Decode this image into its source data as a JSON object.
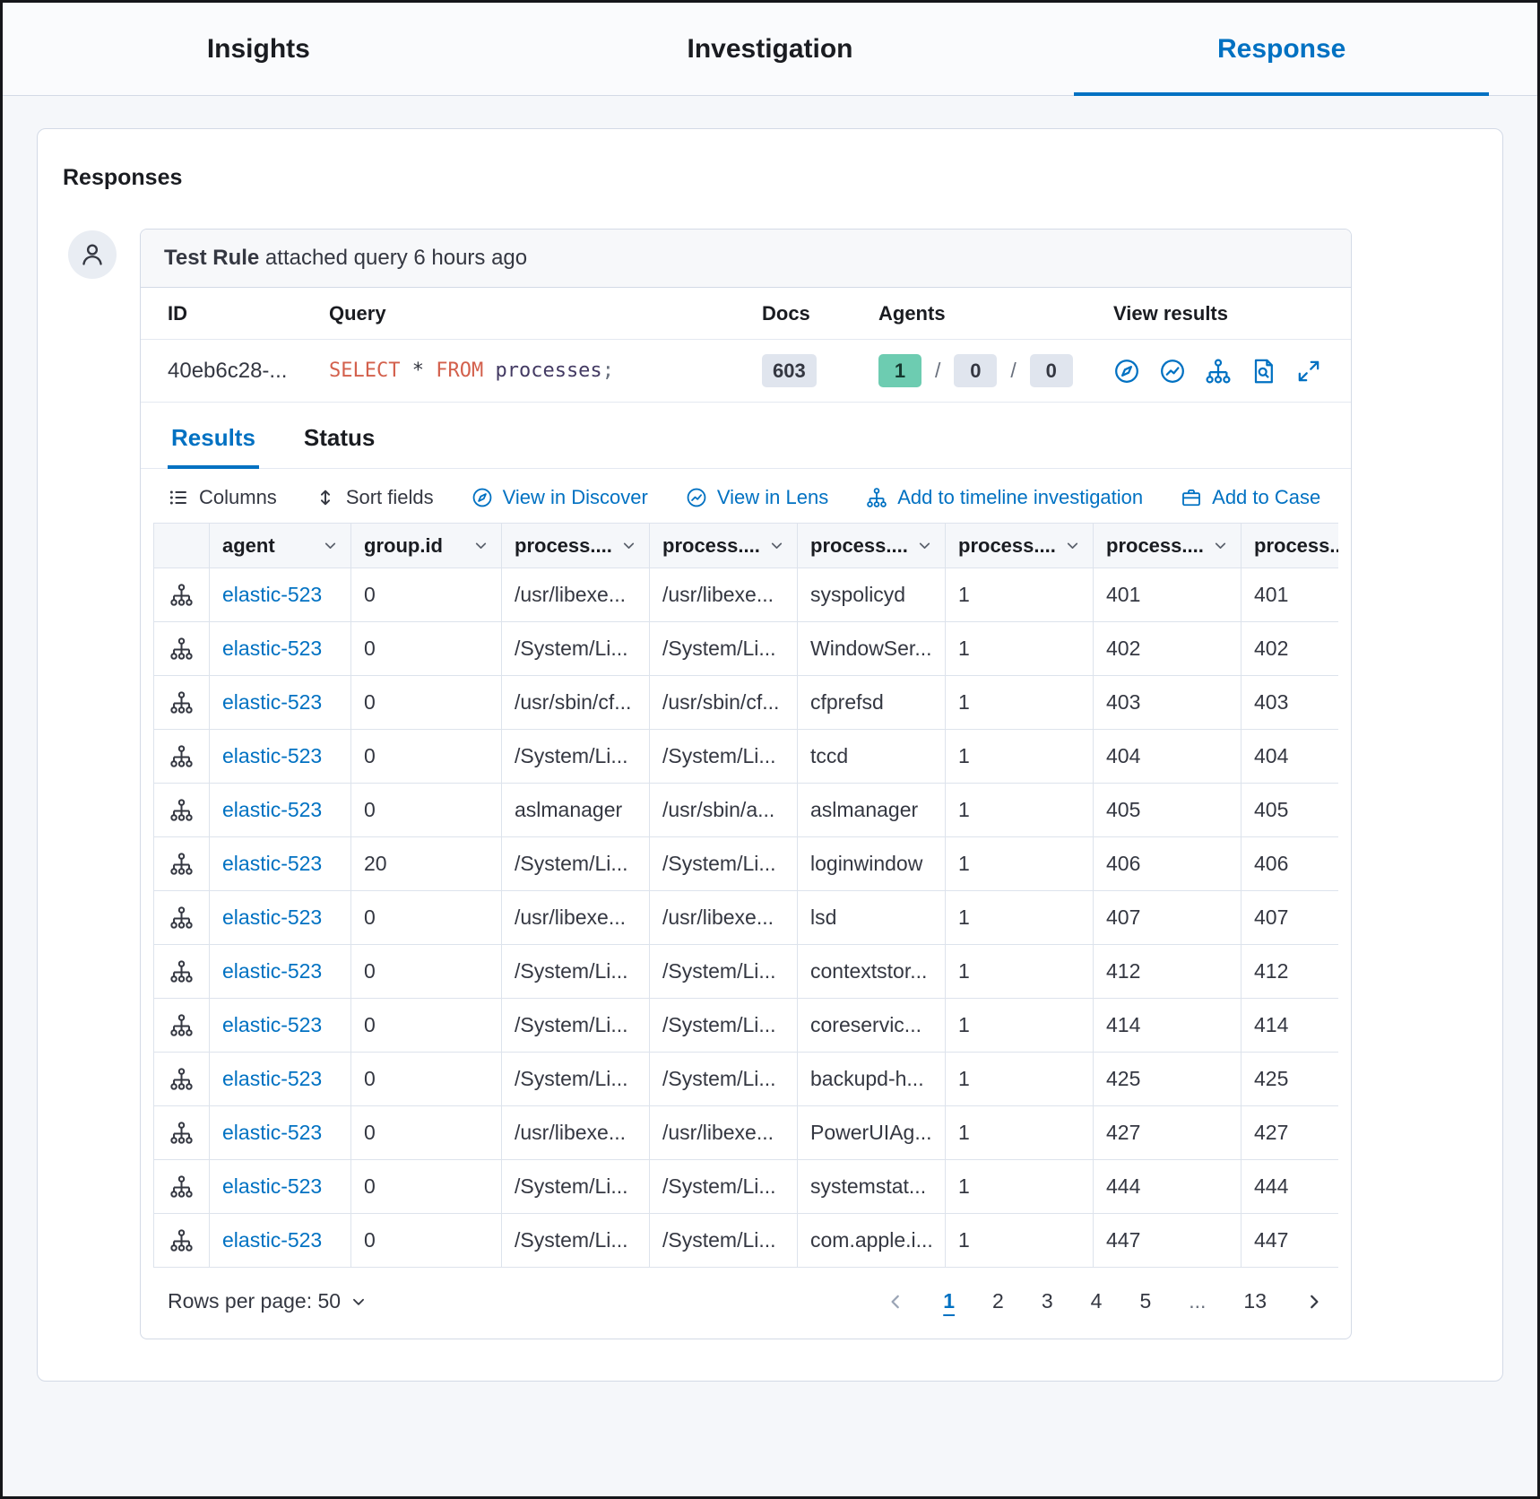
{
  "accent": "#0071c2",
  "tabs": [
    {
      "label": "Insights"
    },
    {
      "label": "Investigation"
    },
    {
      "label": "Response"
    }
  ],
  "page": {
    "title": "Responses"
  },
  "comment": {
    "user": "Test Rule",
    "action": "attached query 6 hours ago"
  },
  "summary": {
    "labels": {
      "id": "ID",
      "query": "Query",
      "docs": "Docs",
      "agents": "Agents",
      "view": "View results"
    },
    "id": "40eb6c28-...",
    "query": {
      "kw1": "SELECT",
      "star": "*",
      "kw2": "FROM",
      "ident": "processes",
      "semi": ";"
    },
    "docs": "603",
    "agents": {
      "success": "1",
      "sep": "/",
      "pending": "0",
      "failed": "0"
    }
  },
  "result_tabs": {
    "results": "Results",
    "status": "Status"
  },
  "toolbar": {
    "columns": "Columns",
    "sort_fields": "Sort fields",
    "view_discover": "View in Discover",
    "view_lens": "View in Lens",
    "add_timeline": "Add to timeline investigation",
    "add_case": "Add to Case"
  },
  "table": {
    "headers": [
      "agent",
      "group.id",
      "process....",
      "process....",
      "process....",
      "process....",
      "process....",
      "process..."
    ],
    "rows": [
      [
        "elastic-523",
        "0",
        "/usr/libexe...",
        "/usr/libexe...",
        "syspolicyd",
        "1",
        "401",
        "401"
      ],
      [
        "elastic-523",
        "0",
        "/System/Li...",
        "/System/Li...",
        "WindowSer...",
        "1",
        "402",
        "402"
      ],
      [
        "elastic-523",
        "0",
        "/usr/sbin/cf...",
        "/usr/sbin/cf...",
        "cfprefsd",
        "1",
        "403",
        "403"
      ],
      [
        "elastic-523",
        "0",
        "/System/Li...",
        "/System/Li...",
        "tccd",
        "1",
        "404",
        "404"
      ],
      [
        "elastic-523",
        "0",
        "aslmanager",
        "/usr/sbin/a...",
        "aslmanager",
        "1",
        "405",
        "405"
      ],
      [
        "elastic-523",
        "20",
        "/System/Li...",
        "/System/Li...",
        "loginwindow",
        "1",
        "406",
        "406"
      ],
      [
        "elastic-523",
        "0",
        "/usr/libexe...",
        "/usr/libexe...",
        "lsd",
        "1",
        "407",
        "407"
      ],
      [
        "elastic-523",
        "0",
        "/System/Li...",
        "/System/Li...",
        "contextstor...",
        "1",
        "412",
        "412"
      ],
      [
        "elastic-523",
        "0",
        "/System/Li...",
        "/System/Li...",
        "coreservic...",
        "1",
        "414",
        "414"
      ],
      [
        "elastic-523",
        "0",
        "/System/Li...",
        "/System/Li...",
        "backupd-h...",
        "1",
        "425",
        "425"
      ],
      [
        "elastic-523",
        "0",
        "/usr/libexe...",
        "/usr/libexe...",
        "PowerUIAg...",
        "1",
        "427",
        "427"
      ],
      [
        "elastic-523",
        "0",
        "/System/Li...",
        "/System/Li...",
        "systemstat...",
        "1",
        "444",
        "444"
      ],
      [
        "elastic-523",
        "0",
        "/System/Li...",
        "/System/Li...",
        "com.apple.i...",
        "1",
        "447",
        "447"
      ]
    ]
  },
  "footer": {
    "rows_per_page": "Rows per page: 50",
    "pages": [
      "1",
      "2",
      "3",
      "4",
      "5",
      "...",
      "13"
    ],
    "active_page": "1"
  }
}
